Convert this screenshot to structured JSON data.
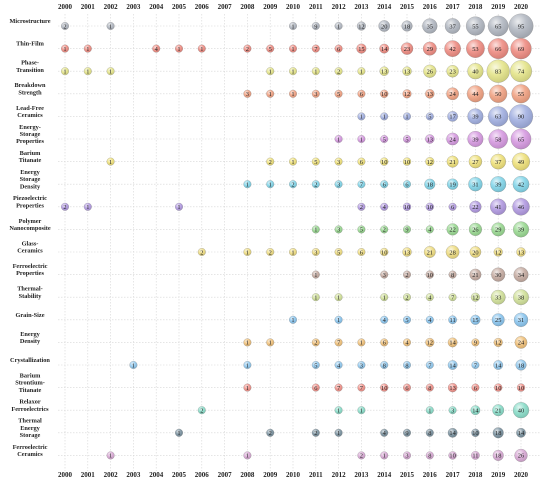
{
  "chart_data": {
    "type": "scatter",
    "x": [
      "2000",
      "2001",
      "2002",
      "2003",
      "2004",
      "2005",
      "2006",
      "2007",
      "2008",
      "2009",
      "2010",
      "2011",
      "2012",
      "2013",
      "2014",
      "2015",
      "2016",
      "2017",
      "2018",
      "2019",
      "2020"
    ],
    "rows": [
      {
        "label": [
          "Microstructure"
        ],
        "color": "#b0b6c0",
        "values": {
          "2000": 2,
          "2002": 1,
          "2010": 1,
          "2011": 9,
          "2012": 1,
          "2013": 12,
          "2014": 20,
          "2015": 18,
          "2016": 35,
          "2017": 37,
          "2018": 55,
          "2019": 65,
          "2020": 95
        }
      },
      {
        "label": [
          "Thin-Film"
        ],
        "color": "#ee8a80",
        "values": {
          "2000": 1,
          "2001": 1,
          "2004": 4,
          "2005": 1,
          "2006": 1,
          "2008": 2,
          "2009": 5,
          "2010": 1,
          "2011": 7,
          "2012": 6,
          "2013": 15,
          "2014": 14,
          "2015": 23,
          "2016": 29,
          "2017": 42,
          "2018": 53,
          "2019": 66,
          "2020": 69
        }
      },
      {
        "label": [
          "Phase-",
          "Transition"
        ],
        "color": "#e4e488",
        "values": {
          "2000": 1,
          "2001": 1,
          "2002": 1,
          "2009": 1,
          "2010": 1,
          "2011": 1,
          "2012": 2,
          "2013": 1,
          "2014": 13,
          "2015": 13,
          "2016": 26,
          "2017": 23,
          "2018": 40,
          "2019": 83,
          "2020": 74
        }
      },
      {
        "label": [
          "Breakdown",
          "Strength"
        ],
        "color": "#f0a080",
        "values": {
          "2008": 3,
          "2009": 1,
          "2010": 1,
          "2011": 3,
          "2012": 5,
          "2013": 6,
          "2014": 10,
          "2015": 12,
          "2016": 13,
          "2017": 24,
          "2018": 44,
          "2019": 50,
          "2020": 55
        }
      },
      {
        "label": [
          "Lead-Free",
          "Ceramics"
        ],
        "color": "#a0aee0",
        "values": {
          "2013": 1,
          "2014": 1,
          "2015": 1,
          "2016": 5,
          "2017": 17,
          "2018": 39,
          "2019": 63,
          "2020": 90
        }
      },
      {
        "label": [
          "Energy-",
          "Storage",
          "Properties"
        ],
        "color": "#d598e0",
        "values": {
          "2012": 1,
          "2013": 1,
          "2014": 5,
          "2015": 5,
          "2016": 13,
          "2017": 24,
          "2018": 39,
          "2019": 58,
          "2020": 65
        }
      },
      {
        "label": [
          "Barium",
          "Titanate"
        ],
        "color": "#eee078",
        "values": {
          "2002": 1,
          "2009": 2,
          "2010": 1,
          "2011": 5,
          "2012": 3,
          "2013": 6,
          "2014": 10,
          "2015": 10,
          "2016": 12,
          "2017": 21,
          "2018": 27,
          "2019": 37,
          "2020": 49
        }
      },
      {
        "label": [
          "Energy",
          "Storage",
          "Density"
        ],
        "color": "#80d4e8",
        "values": {
          "2008": 1,
          "2009": 1,
          "2010": 2,
          "2011": 2,
          "2012": 3,
          "2013": 7,
          "2014": 6,
          "2015": 6,
          "2016": 18,
          "2017": 19,
          "2018": 31,
          "2019": 39,
          "2020": 42
        }
      },
      {
        "label": [
          "Piezoelectric",
          "Properties"
        ],
        "color": "#b098e0",
        "values": {
          "2000": 2,
          "2001": 1,
          "2005": 1,
          "2013": 2,
          "2014": 4,
          "2015": 10,
          "2016": 10,
          "2017": 6,
          "2018": 22,
          "2019": 41,
          "2020": 46
        }
      },
      {
        "label": [
          "Polymer",
          "Nanocomposite"
        ],
        "color": "#98d890",
        "values": {
          "2011": 1,
          "2012": 3,
          "2013": 5,
          "2014": 2,
          "2015": 9,
          "2016": 4,
          "2017": 22,
          "2018": 26,
          "2019": 29,
          "2020": 39
        }
      },
      {
        "label": [
          "Glass-",
          "Ceramics"
        ],
        "color": "#eedc80",
        "values": {
          "2006": 2,
          "2008": 1,
          "2009": 2,
          "2010": 1,
          "2011": 3,
          "2012": 5,
          "2013": 6,
          "2014": 10,
          "2015": 13,
          "2016": 21,
          "2017": 28,
          "2018": 20,
          "2019": 12,
          "2020": 13
        }
      },
      {
        "label": [
          "Ferroelectric",
          "Properties"
        ],
        "color": "#c4aaa0",
        "values": {
          "2011": 1,
          "2014": 3,
          "2015": 2,
          "2016": 10,
          "2017": 8,
          "2018": 21,
          "2019": 30,
          "2020": 34
        }
      },
      {
        "label": [
          "Thermal-",
          "Stability"
        ],
        "color": "#d0e098",
        "values": {
          "2011": 1,
          "2012": 1,
          "2014": 1,
          "2015": 2,
          "2016": 4,
          "2017": 7,
          "2018": 12,
          "2019": 33,
          "2020": 38
        }
      },
      {
        "label": [
          "Grain-Size"
        ],
        "color": "#88c4ee",
        "values": {
          "2010": 1,
          "2012": 1,
          "2014": 4,
          "2015": 5,
          "2016": 4,
          "2017": 11,
          "2018": 15,
          "2019": 25,
          "2020": 31
        }
      },
      {
        "label": [
          "Energy",
          "Density"
        ],
        "color": "#f0c078",
        "values": {
          "2008": 1,
          "2009": 1,
          "2011": 2,
          "2012": 7,
          "2013": 1,
          "2014": 6,
          "2015": 4,
          "2016": 12,
          "2017": 14,
          "2018": 9,
          "2019": 12,
          "2020": 24
        }
      },
      {
        "label": [
          "Crystallization"
        ],
        "color": "#90c8ee",
        "values": {
          "2003": 1,
          "2008": 1,
          "2011": 5,
          "2012": 4,
          "2013": 3,
          "2014": 8,
          "2015": 8,
          "2016": 7,
          "2017": 14,
          "2018": 7,
          "2019": 14,
          "2020": 18
        }
      },
      {
        "label": [
          "Barium",
          "Strontium-",
          "Titanate"
        ],
        "color": "#f09088",
        "values": {
          "2008": 1,
          "2011": 6,
          "2012": 7,
          "2013": 7,
          "2014": 10,
          "2015": 6,
          "2016": 8,
          "2017": 13,
          "2018": 6,
          "2019": 10,
          "2020": 10
        }
      },
      {
        "label": [
          "Relaxor",
          "Ferroelectrics"
        ],
        "color": "#88dcc8",
        "values": {
          "2006": 2,
          "2012": 1,
          "2013": 1,
          "2016": 1,
          "2017": 3,
          "2018": 14,
          "2019": 21,
          "2020": 40
        }
      },
      {
        "label": [
          "Thermal",
          "Energy",
          "Storage"
        ],
        "color": "#78909e",
        "values": {
          "2005": 1,
          "2009": 2,
          "2011": 2,
          "2012": 1,
          "2014": 4,
          "2015": 9,
          "2016": 8,
          "2017": 14,
          "2018": 10,
          "2019": 18,
          "2020": 14
        }
      },
      {
        "label": [
          "Ferroelectric",
          "Ceramics"
        ],
        "color": "#d8a8d4",
        "values": {
          "2002": 1,
          "2008": 1,
          "2013": 2,
          "2014": 1,
          "2015": 3,
          "2016": 8,
          "2017": 10,
          "2018": 11,
          "2019": 18,
          "2020": 26
        }
      }
    ],
    "top_years_y": 9,
    "bottom_years_y": 477
  }
}
